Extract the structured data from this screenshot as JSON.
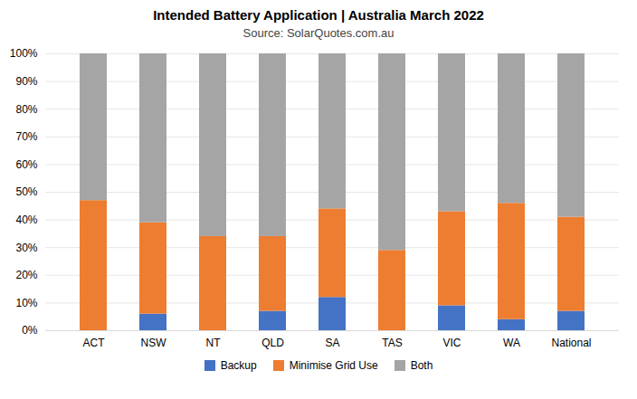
{
  "chart_data": {
    "type": "bar",
    "title": "Intended Battery Application | Australia March 2022",
    "subtitle": "Source: SolarQuotes.com.au",
    "categories": [
      "ACT",
      "NSW",
      "NT",
      "QLD",
      "SA",
      "TAS",
      "VIC",
      "WA",
      "National"
    ],
    "series": [
      {
        "name": "Backup",
        "color": "#4472c4",
        "values": [
          0,
          6,
          0,
          7,
          12,
          0,
          9,
          4,
          7
        ]
      },
      {
        "name": "Minimise Grid Use",
        "color": "#ed7d31",
        "values": [
          47,
          33,
          34,
          27,
          32,
          29,
          34,
          42,
          34
        ]
      },
      {
        "name": "Both",
        "color": "#a5a5a5",
        "values": [
          53,
          61,
          66,
          66,
          56,
          71,
          57,
          54,
          59
        ]
      }
    ],
    "stacked": true,
    "ylim": [
      0,
      100
    ],
    "yticks": [
      {
        "value": 0,
        "label": "0%"
      },
      {
        "value": 10,
        "label": "10%"
      },
      {
        "value": 20,
        "label": "20%"
      },
      {
        "value": 30,
        "label": "30%"
      },
      {
        "value": 40,
        "label": "40%"
      },
      {
        "value": 50,
        "label": "50%"
      },
      {
        "value": 60,
        "label": "60%"
      },
      {
        "value": 70,
        "label": "70%"
      },
      {
        "value": 80,
        "label": "80%"
      },
      {
        "value": 90,
        "label": "90%"
      },
      {
        "value": 100,
        "label": "100%"
      }
    ],
    "grid": true,
    "legend": "bottom"
  }
}
